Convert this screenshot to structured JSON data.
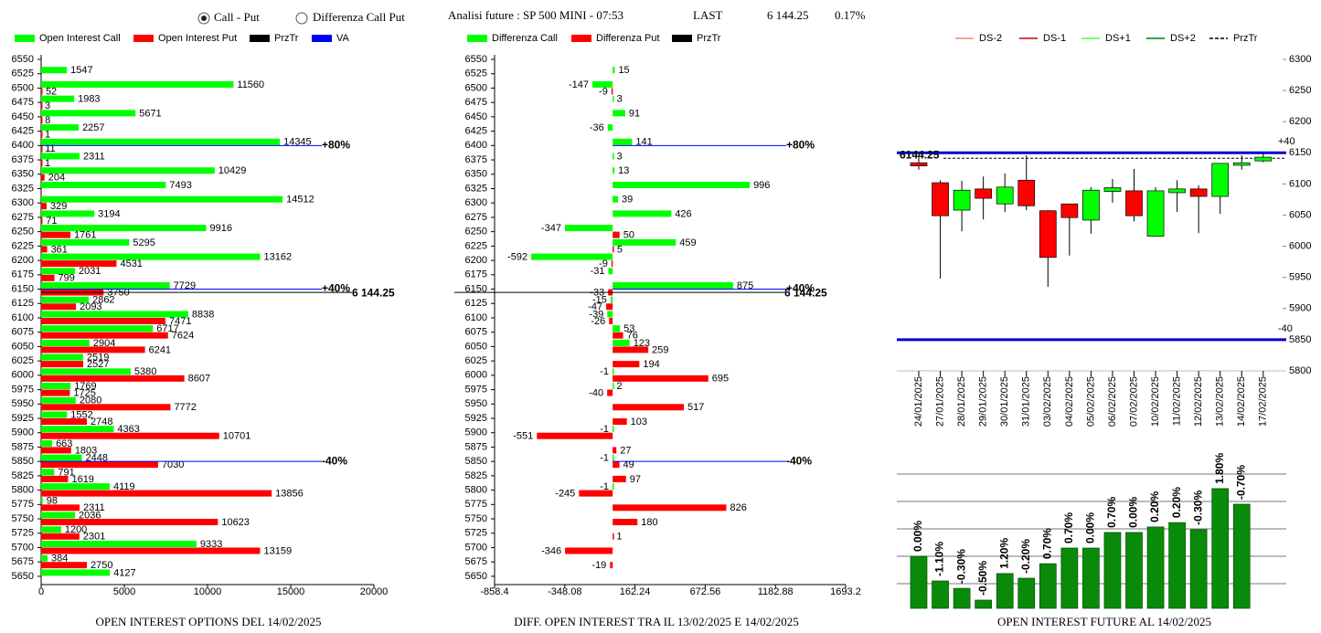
{
  "header": {
    "options": [
      "Call - Put",
      "Differenza Call Put"
    ],
    "selected": 0,
    "title": "Analisi future : SP 500 MINI - 07:53",
    "last_label": "LAST",
    "last": {
      "value": 6144.25,
      "label": "6 144.25"
    },
    "change": {
      "value": 0.17,
      "label": "0.17%"
    }
  },
  "chart_data": [
    {
      "type": "hbar",
      "title": "OPEN INTEREST OPTIONS DEL 14/02/2025",
      "categories": [
        6550,
        6525,
        6500,
        6475,
        6450,
        6425,
        6400,
        6375,
        6350,
        6325,
        6300,
        6275,
        6250,
        6225,
        6200,
        6175,
        6150,
        6125,
        6100,
        6075,
        6050,
        6025,
        6000,
        5975,
        5950,
        5925,
        5900,
        5875,
        5850,
        5825,
        5800,
        5775,
        5750,
        5725,
        5700,
        5675,
        5650
      ],
      "ylim": [
        5650,
        6550
      ],
      "series": [
        {
          "name": "Open Interest Call",
          "color": "#00ff00",
          "values": [
            null,
            1547,
            11560,
            1983,
            5671,
            2257,
            14345,
            2311,
            10429,
            7493,
            14512,
            3194,
            9916,
            5295,
            13162,
            2031,
            7729,
            2862,
            8838,
            6717,
            2904,
            2519,
            5380,
            1769,
            2080,
            1552,
            4363,
            663,
            2448,
            791,
            4119,
            98,
            2036,
            1200,
            9333,
            384,
            4127
          ]
        },
        {
          "name": "Open Interest Put",
          "color": "#ff0000",
          "values": [
            null,
            null,
            52,
            3,
            8,
            1,
            11,
            1,
            204,
            null,
            329,
            71,
            1761,
            361,
            4531,
            799,
            3750,
            2093,
            7471,
            7624,
            6241,
            2527,
            8607,
            1725,
            7772,
            2748,
            10701,
            1803,
            7030,
            1619,
            13856,
            2311,
            10623,
            2301,
            13159,
            2750,
            null
          ]
        }
      ],
      "legend": [
        {
          "name": "PrzTr",
          "color": "#000000"
        },
        {
          "name": "VA",
          "color": "#0000ff"
        }
      ],
      "xlim": [
        0,
        20000
      ],
      "xticks": [
        0,
        5000,
        10000,
        15000,
        20000
      ],
      "va_levels": [
        {
          "value": 6400,
          "label": "+80%"
        },
        {
          "value": 6150,
          "label": "+40%"
        },
        {
          "value": 5850,
          "label": "-40%"
        }
      ],
      "va_color": "#0000ff"
    },
    {
      "type": "hbar",
      "title": "DIFF. OPEN INTEREST TRA IL 13/02/2025 E 14/02/2025",
      "categories": [
        6550,
        6525,
        6500,
        6475,
        6450,
        6425,
        6400,
        6375,
        6350,
        6325,
        6300,
        6275,
        6250,
        6225,
        6200,
        6175,
        6150,
        6125,
        6100,
        6075,
        6050,
        6025,
        6000,
        5975,
        5950,
        5925,
        5900,
        5875,
        5850,
        5825,
        5800,
        5775,
        5750,
        5725,
        5700,
        5675,
        5650
      ],
      "ylim": [
        5650,
        6550
      ],
      "series": [
        {
          "name": "Differenza Call",
          "color": "#00ff00",
          "values": [
            null,
            15,
            -147,
            3,
            91,
            -36,
            141,
            3,
            13,
            996,
            39,
            426,
            -347,
            459,
            -592,
            -31,
            875,
            -15,
            -39,
            53,
            123,
            null,
            -1,
            2,
            null,
            null,
            -1,
            null,
            -1,
            null,
            -1,
            null,
            null,
            null,
            null,
            null,
            null
          ]
        },
        {
          "name": "Differenza Put",
          "color": "#ff0000",
          "values": [
            null,
            null,
            -9,
            null,
            null,
            null,
            null,
            null,
            null,
            null,
            null,
            null,
            50,
            5,
            -9,
            null,
            -33,
            -47,
            -26,
            76,
            259,
            194,
            695,
            -40,
            517,
            103,
            -551,
            27,
            49,
            97,
            -245,
            826,
            180,
            1,
            -346,
            -19,
            null
          ]
        }
      ],
      "legend": [
        {
          "name": "PrzTr",
          "color": "#000000"
        }
      ],
      "xlim": [
        -858.4,
        1693.2
      ],
      "xticks": [
        -858.4,
        -348.08,
        162.24,
        672.56,
        1182.88,
        1693.2
      ],
      "va_levels": [
        {
          "value": 6400,
          "label": "+80%"
        },
        {
          "value": 6150,
          "label": "+40%"
        },
        {
          "value": 5850,
          "label": "-40%"
        }
      ],
      "va_color": "#0000ff"
    },
    {
      "type": "candlestick",
      "dates": [
        "24/01/2025",
        "27/01/2025",
        "28/01/2025",
        "29/01/2025",
        "30/01/2025",
        "31/01/2025",
        "03/02/2025",
        "04/02/2025",
        "05/02/2025",
        "06/02/2025",
        "07/02/2025",
        "10/02/2025",
        "11/02/2025",
        "12/02/2025",
        "13/02/2025",
        "14/02/2025",
        "17/02/2025"
      ],
      "open": [
        6134,
        6102,
        6058,
        6092,
        6068,
        6106,
        6057,
        6068,
        6042,
        6088,
        6089,
        6016,
        6086,
        6092,
        6080,
        6130,
        6137
      ],
      "high": [
        6146,
        6106,
        6105,
        6112,
        6117,
        6146,
        6058,
        6068,
        6095,
        6108,
        6124,
        6095,
        6106,
        6098,
        6133,
        6146,
        6150
      ],
      "low": [
        6123,
        5948,
        6024,
        6043,
        6055,
        6058,
        5935,
        5985,
        6020,
        6070,
        6040,
        6016,
        6055,
        6021,
        6052,
        6123,
        6135
      ],
      "close": [
        6129,
        6049,
        6090,
        6077,
        6095,
        6065,
        5982,
        6046,
        6090,
        6094,
        6049,
        6089,
        6092,
        6080,
        6133,
        6134,
        6143
      ],
      "up_color": "#00ff00",
      "down_color": "#ff0000",
      "ylim": [
        5800,
        6300
      ],
      "yticks": [
        5800,
        5850,
        5900,
        5950,
        6000,
        6050,
        6100,
        6150,
        6200,
        6250,
        6300
      ],
      "legend": [
        {
          "name": "DS-2",
          "color": "#f08a60"
        },
        {
          "name": "DS-1",
          "color": "#d00000"
        },
        {
          "name": "DS+1",
          "color": "#40ff40"
        },
        {
          "name": "DS+2",
          "color": "#008000"
        },
        {
          "name": "PrzTr",
          "color": "#000000",
          "dashed": true
        }
      ],
      "levels": [
        {
          "value": 6150,
          "label": "+40"
        },
        {
          "value": 5850,
          "label": "-40"
        }
      ],
      "level_color": "#0000cc",
      "last_price": 6144.25
    },
    {
      "type": "bar",
      "title": "OPEN INTEREST FUTURE AL 14/02/2025",
      "values": [
        2.0,
        1.1,
        0.83,
        0.4,
        1.37,
        1.2,
        1.73,
        2.3,
        2.3,
        2.87,
        2.87,
        3.07,
        3.23,
        2.97,
        4.47,
        3.9
      ],
      "changes": [
        0,
        -1.1,
        -0.3,
        -0.5,
        1.2,
        -0.2,
        0.7,
        0.7,
        0,
        0.7,
        0,
        0.2,
        0.2,
        -0.3,
        1.8,
        -0.7
      ],
      "change_labels": [
        "0.00%",
        "-1.10%",
        "-0.30%",
        "-0.50%",
        "1.20%",
        "-0.20%",
        "0.70%",
        "0.70%",
        "0.00%",
        "0.70%",
        "0.00%",
        "0.20%",
        "0.20%",
        "-0.30%",
        "1.80%",
        "-0.70%"
      ],
      "color": "#0a8a0a",
      "ylim": [
        0,
        5
      ],
      "yticks": [
        1,
        2,
        3,
        4,
        5
      ],
      "grid": true
    }
  ]
}
